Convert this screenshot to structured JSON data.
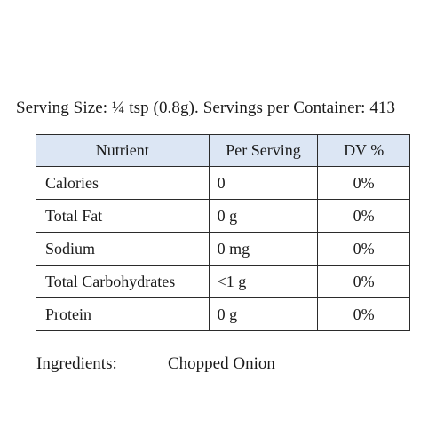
{
  "serving_info": "Serving Size: ¼ tsp (0.8g). Servings per Container: 413",
  "table": {
    "headers": [
      "Nutrient",
      "Per Serving",
      "DV %"
    ],
    "rows": [
      {
        "nutrient": "Calories",
        "per_serving": "0",
        "dv": "0%"
      },
      {
        "nutrient": "Total Fat",
        "per_serving": "0 g",
        "dv": "0%"
      },
      {
        "nutrient": "Sodium",
        "per_serving": "0 mg",
        "dv": "0%"
      },
      {
        "nutrient": "Total Carbohydrates",
        "per_serving": "<1 g",
        "dv": "0%"
      },
      {
        "nutrient": "Protein",
        "per_serving": "0 g",
        "dv": "0%"
      }
    ],
    "header_color": "#dce6f4",
    "border_color": "#2b2b2b"
  },
  "ingredients": {
    "label": "Ingredients:",
    "value": "Chopped Onion"
  }
}
